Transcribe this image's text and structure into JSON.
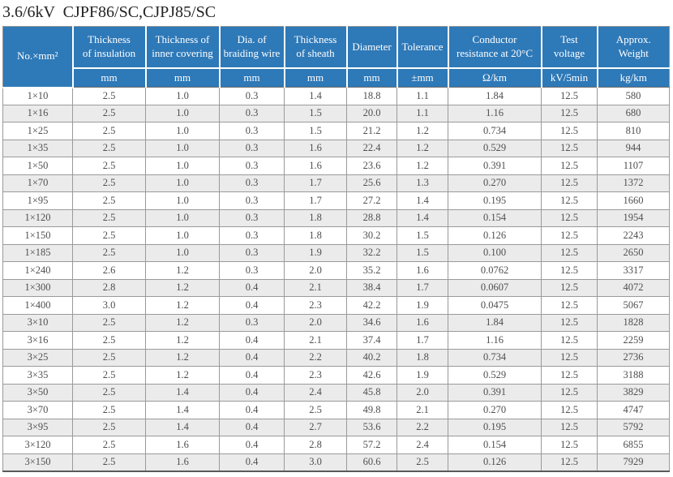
{
  "title": "3.6/6kV  CJPF86/SC,CJPJ85/SC",
  "table": {
    "columns": [
      {
        "key": "size",
        "label": "No.×mm²",
        "unit": ""
      },
      {
        "key": "insulation",
        "label": "Thickness\nof insulation",
        "unit": "mm"
      },
      {
        "key": "inner_covering",
        "label": "Thickness of\ninner covering",
        "unit": "mm"
      },
      {
        "key": "braiding_wire",
        "label": "Dia. of\nbraiding wire",
        "unit": "mm"
      },
      {
        "key": "sheath",
        "label": "Thickness\nof sheath",
        "unit": "mm"
      },
      {
        "key": "diameter",
        "label": "Diameter",
        "unit": "mm"
      },
      {
        "key": "tolerance",
        "label": "Tolerance",
        "unit": "±mm"
      },
      {
        "key": "resistance",
        "label": "Conductor\nresistance at 20°C",
        "unit": "Ω/km"
      },
      {
        "key": "test_voltage",
        "label": "Test\nvoltage",
        "unit": "kV/5min"
      },
      {
        "key": "weight",
        "label": "Approx.\nWeight",
        "unit": "kg/km"
      }
    ],
    "rows": [
      [
        "1×10",
        "2.5",
        "1.0",
        "0.3",
        "1.4",
        "18.8",
        "1.1",
        "1.84",
        "12.5",
        "580"
      ],
      [
        "1×16",
        "2.5",
        "1.0",
        "0.3",
        "1.5",
        "20.0",
        "1.1",
        "1.16",
        "12.5",
        "680"
      ],
      [
        "1×25",
        "2.5",
        "1.0",
        "0.3",
        "1.5",
        "21.2",
        "1.2",
        "0.734",
        "12.5",
        "810"
      ],
      [
        "1×35",
        "2.5",
        "1.0",
        "0.3",
        "1.6",
        "22.4",
        "1.2",
        "0.529",
        "12.5",
        "944"
      ],
      [
        "1×50",
        "2.5",
        "1.0",
        "0.3",
        "1.6",
        "23.6",
        "1.2",
        "0.391",
        "12.5",
        "1107"
      ],
      [
        "1×70",
        "2.5",
        "1.0",
        "0.3",
        "1.7",
        "25.6",
        "1.3",
        "0.270",
        "12.5",
        "1372"
      ],
      [
        "1×95",
        "2.5",
        "1.0",
        "0.3",
        "1.7",
        "27.2",
        "1.4",
        "0.195",
        "12.5",
        "1660"
      ],
      [
        "1×120",
        "2.5",
        "1.0",
        "0.3",
        "1.8",
        "28.8",
        "1.4",
        "0.154",
        "12.5",
        "1954"
      ],
      [
        "1×150",
        "2.5",
        "1.0",
        "0.3",
        "1.8",
        "30.2",
        "1.5",
        "0.126",
        "12.5",
        "2243"
      ],
      [
        "1×185",
        "2.5",
        "1.0",
        "0.3",
        "1.9",
        "32.2",
        "1.5",
        "0.100",
        "12.5",
        "2650"
      ],
      [
        "1×240",
        "2.6",
        "1.2",
        "0.3",
        "2.0",
        "35.2",
        "1.6",
        "0.0762",
        "12.5",
        "3317"
      ],
      [
        "1×300",
        "2.8",
        "1.2",
        "0.4",
        "2.1",
        "38.4",
        "1.7",
        "0.0607",
        "12.5",
        "4072"
      ],
      [
        "1×400",
        "3.0",
        "1.2",
        "0.4",
        "2.3",
        "42.2",
        "1.9",
        "0.0475",
        "12.5",
        "5067"
      ],
      [
        "3×10",
        "2.5",
        "1.2",
        "0.3",
        "2.0",
        "34.6",
        "1.6",
        "1.84",
        "12.5",
        "1828"
      ],
      [
        "3×16",
        "2.5",
        "1.2",
        "0.4",
        "2.1",
        "37.4",
        "1.7",
        "1.16",
        "12.5",
        "2259"
      ],
      [
        "3×25",
        "2.5",
        "1.2",
        "0.4",
        "2.2",
        "40.2",
        "1.8",
        "0.734",
        "12.5",
        "2736"
      ],
      [
        "3×35",
        "2.5",
        "1.2",
        "0.4",
        "2.3",
        "42.6",
        "1.9",
        "0.529",
        "12.5",
        "3188"
      ],
      [
        "3×50",
        "2.5",
        "1.4",
        "0.4",
        "2.4",
        "45.8",
        "2.0",
        "0.391",
        "12.5",
        "3829"
      ],
      [
        "3×70",
        "2.5",
        "1.4",
        "0.4",
        "2.5",
        "49.8",
        "2.1",
        "0.270",
        "12.5",
        "4747"
      ],
      [
        "3×95",
        "2.5",
        "1.4",
        "0.4",
        "2.7",
        "53.6",
        "2.2",
        "0.195",
        "12.5",
        "5792"
      ],
      [
        "3×120",
        "2.5",
        "1.6",
        "0.4",
        "2.8",
        "57.2",
        "2.4",
        "0.154",
        "12.5",
        "6855"
      ],
      [
        "3×150",
        "2.5",
        "1.6",
        "0.4",
        "3.0",
        "60.6",
        "2.5",
        "0.126",
        "12.5",
        "7929"
      ]
    ]
  },
  "colors": {
    "header_bg": "#2e79b8",
    "header_text": "#ffffff",
    "row_bg": "#ffffff",
    "row_alt_bg": "#ebebeb",
    "grid_line": "#9a9a9a",
    "body_text": "#4f4f52",
    "title_text": "#242424"
  }
}
